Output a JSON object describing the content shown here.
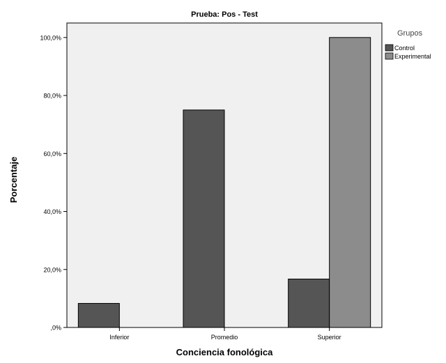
{
  "chart_data": {
    "type": "bar",
    "title": "Prueba: Pos - Test",
    "xlabel": "Conciencia fonológica",
    "ylabel": "Porcentaje",
    "categories": [
      "Inferior",
      "Promedio",
      "Superior"
    ],
    "series": [
      {
        "name": "Control",
        "values": [
          8.3,
          75.0,
          16.7
        ],
        "color": "#555555"
      },
      {
        "name": "Experimental",
        "values": [
          0,
          0,
          100.0
        ],
        "color": "#8c8c8c"
      }
    ],
    "ylim": [
      0,
      105
    ],
    "yticks": [
      0,
      20,
      40,
      60,
      80,
      100
    ],
    "ytick_labels": [
      ",0%",
      "20,0%",
      "40,0%",
      "60,0%",
      "80,0%",
      "100,0%"
    ],
    "legend": {
      "title": "Grupos",
      "placement": "right"
    },
    "plot_background": "#f0f0f0",
    "grid": false
  }
}
